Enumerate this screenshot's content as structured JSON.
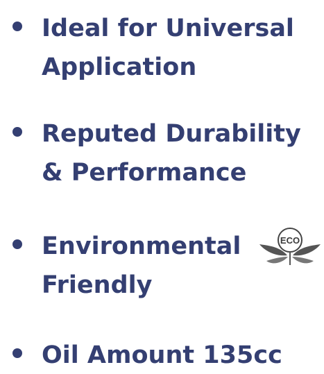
{
  "items": [
    {
      "lines": [
        "Ideal for Universal",
        "Application"
      ]
    },
    {
      "lines": [
        "Reputed Durability",
        "& Performance"
      ]
    },
    {
      "lines": [
        "Environmental",
        "Friendly"
      ]
    },
    {
      "lines": [
        "Oil Amount 135cc"
      ]
    }
  ],
  "badge": "ECO"
}
